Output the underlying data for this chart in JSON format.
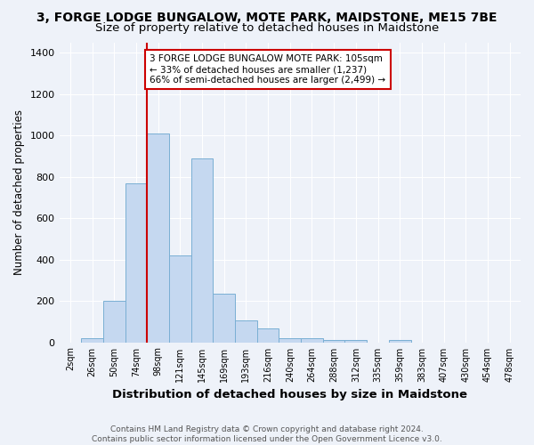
{
  "title": "3, FORGE LODGE BUNGALOW, MOTE PARK, MAIDSTONE, ME15 7BE",
  "subtitle": "Size of property relative to detached houses in Maidstone",
  "xlabel": "Distribution of detached houses by size in Maidstone",
  "ylabel": "Number of detached properties",
  "categories": [
    "2sqm",
    "26sqm",
    "50sqm",
    "74sqm",
    "98sqm",
    "121sqm",
    "145sqm",
    "169sqm",
    "193sqm",
    "216sqm",
    "240sqm",
    "264sqm",
    "288sqm",
    "312sqm",
    "335sqm",
    "359sqm",
    "383sqm",
    "407sqm",
    "430sqm",
    "454sqm",
    "478sqm"
  ],
  "bar_heights": [
    0,
    20,
    200,
    770,
    1010,
    420,
    890,
    235,
    105,
    65,
    20,
    20,
    10,
    10,
    0,
    10,
    0,
    0,
    0,
    0,
    0
  ],
  "bar_color": "#c5d8f0",
  "bar_edge_color": "#7aafd4",
  "vline_x_index": 4,
  "vline_color": "#cc0000",
  "annotation_text": "3 FORGE LODGE BUNGALOW MOTE PARK: 105sqm\n← 33% of detached houses are smaller (1,237)\n66% of semi-detached houses are larger (2,499) →",
  "annotation_box_color": "#ffffff",
  "annotation_edge_color": "#cc0000",
  "ylim": [
    0,
    1450
  ],
  "yticks": [
    0,
    200,
    400,
    600,
    800,
    1000,
    1200,
    1400
  ],
  "footer1": "Contains HM Land Registry data © Crown copyright and database right 2024.",
  "footer2": "Contains public sector information licensed under the Open Government Licence v3.0.",
  "bg_color": "#eef2f9",
  "title_fontsize": 10,
  "subtitle_fontsize": 9.5,
  "xlabel_fontsize": 9.5,
  "ylabel_fontsize": 8.5,
  "footer_fontsize": 6.5,
  "annotation_fontsize": 7.5
}
